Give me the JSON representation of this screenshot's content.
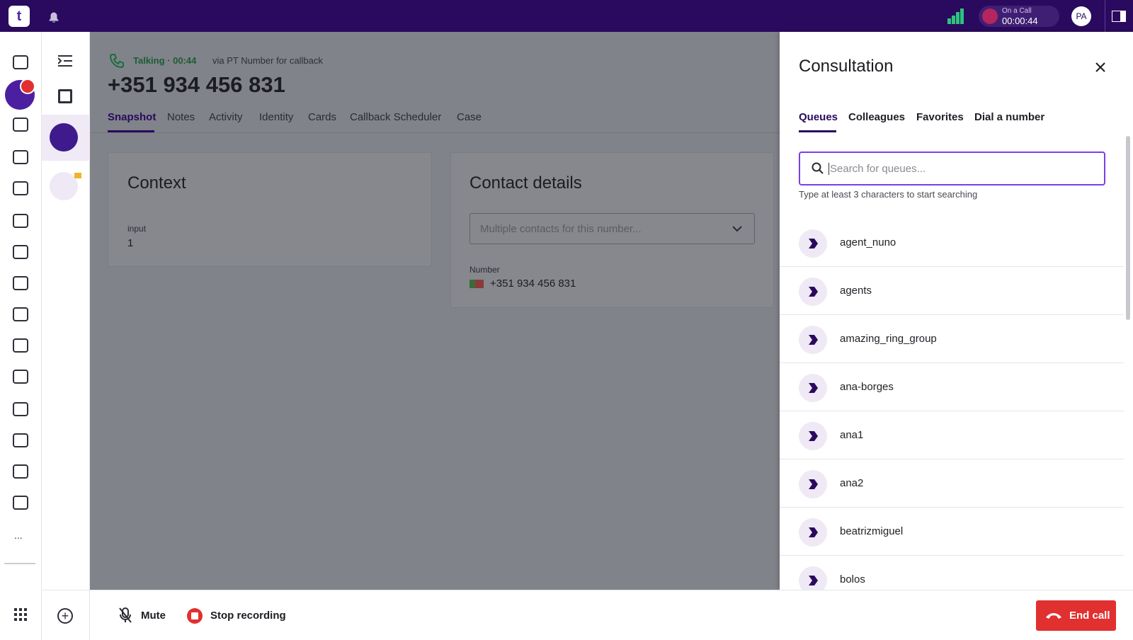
{
  "topbar": {
    "logo": "t",
    "status": "On a Call",
    "timer": "00:00:44",
    "avatar": "PA"
  },
  "sidebar": {
    "more": "..."
  },
  "call": {
    "state": "Talking · 00:44",
    "via": "via PT Number for callback",
    "number": "+351 934 456 831",
    "tabs": [
      "Snapshot",
      "Notes",
      "Activity",
      "Identity",
      "Cards",
      "Callback Scheduler",
      "Case"
    ]
  },
  "context": {
    "title": "Context",
    "field_label": "input",
    "field_value": "1"
  },
  "contact": {
    "title": "Contact details",
    "select_placeholder": "Multiple contacts for this number...",
    "number_label": "Number",
    "number": "+351 934 456 831"
  },
  "consultation": {
    "title": "Consultation",
    "tabs": [
      "Queues",
      "Colleagues",
      "Favorites",
      "Dial a number"
    ],
    "search_placeholder": "Search for queues...",
    "hint": "Type at least 3 characters to start searching",
    "queues": [
      "agent_nuno",
      "agents",
      "amazing_ring_group",
      "ana-borges",
      "ana1",
      "ana2",
      "beatrizmiguel",
      "bolos"
    ]
  },
  "bottombar": {
    "mute": "Mute",
    "stop_recording": "Stop recording",
    "end_call": "End call"
  }
}
